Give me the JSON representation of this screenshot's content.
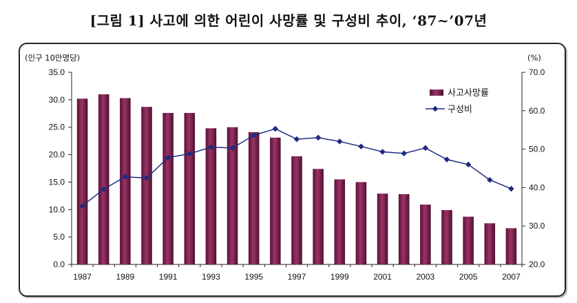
{
  "title": "[그림 1] 사고에 의한 어린이 사망률 및 구성비 추이, ‘87~’07년",
  "chart_data": {
    "type": "bar",
    "title": "[그림 1] 사고에 의한 어린이 사망률 및 구성비 추이, ‘87~’07년",
    "left_axis_unit": "(인구 10만명당)",
    "right_axis_unit": "(%)",
    "x": [
      1987,
      1988,
      1989,
      1990,
      1991,
      1992,
      1993,
      1994,
      1995,
      1996,
      1997,
      1998,
      1999,
      2000,
      2001,
      2002,
      2003,
      2004,
      2005,
      2006,
      2007
    ],
    "x_tick_labels": [
      "1987",
      "1989",
      "1991",
      "1993",
      "1995",
      "1997",
      "1999",
      "2001",
      "2003",
      "2005",
      "2007"
    ],
    "ylim_left": [
      0,
      35
    ],
    "y_ticks_left": [
      "0.0",
      "5.0",
      "10.0",
      "15.0",
      "20.0",
      "25.0",
      "30.0",
      "35.0"
    ],
    "ylim_right": [
      20,
      70
    ],
    "y_ticks_right": [
      "20.0",
      "30.0",
      "40.0",
      "50.0",
      "60.0",
      "70.0"
    ],
    "series": [
      {
        "name": "사고사망률",
        "type": "bar",
        "axis": "left",
        "color": "#80204f",
        "values": [
          30.2,
          31.0,
          30.3,
          28.7,
          27.6,
          27.6,
          24.8,
          25.0,
          24.1,
          23.1,
          19.7,
          17.4,
          15.5,
          15.0,
          12.9,
          12.8,
          10.9,
          9.9,
          8.7,
          7.5,
          6.6
        ]
      },
      {
        "name": "구성비",
        "type": "line",
        "axis": "right",
        "color": "#1f2a80",
        "values": [
          35.2,
          39.6,
          42.8,
          42.5,
          47.8,
          48.8,
          50.5,
          50.3,
          53.6,
          55.3,
          52.6,
          53.0,
          52.0,
          50.7,
          49.3,
          48.9,
          50.3,
          47.3,
          46.0,
          42.0,
          39.7
        ]
      }
    ],
    "legend_position": "top-right",
    "grid": false
  }
}
